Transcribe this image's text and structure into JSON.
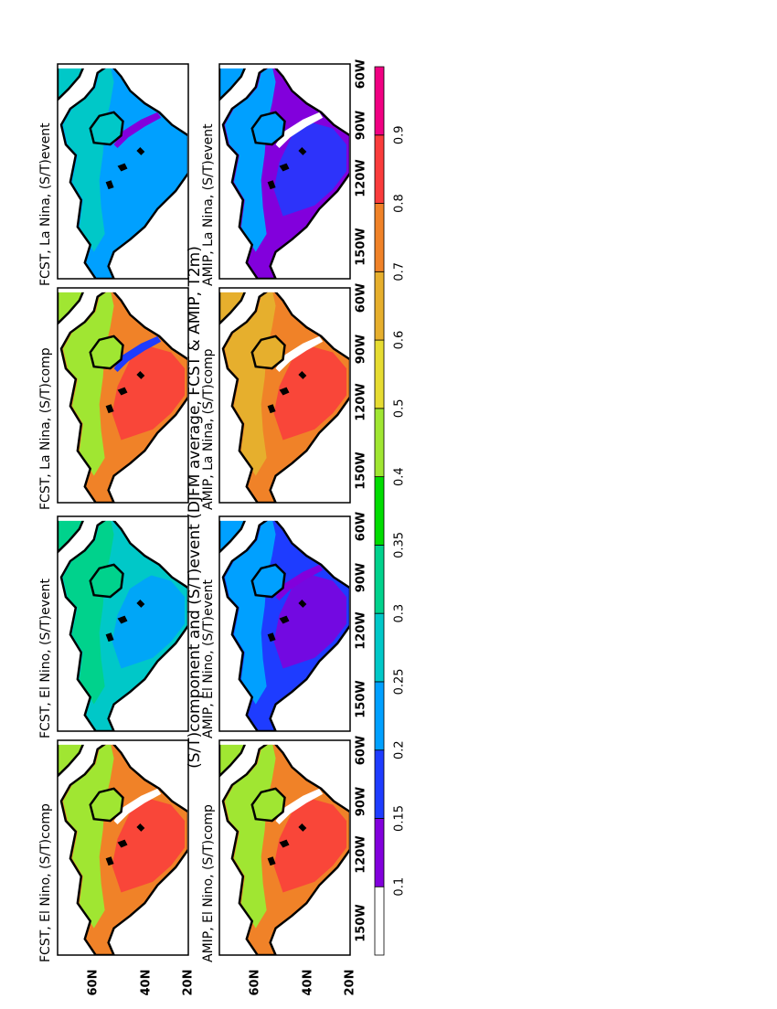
{
  "title": "(S/T)component and (S/T)event (DJFM average, FCST & AMIP, T2m)",
  "panels": [
    {
      "title": "FCST, El Nino, (S/T)comp"
    },
    {
      "title": "FCST, El Nino, (S/T)event"
    },
    {
      "title": "FCST, La Nina, (S/T)comp"
    },
    {
      "title": "FCST, La Nina, (S/T)event"
    },
    {
      "title": "AMIP, El Nino, (S/T)comp"
    },
    {
      "title": "AMIP, El Nino, (S/T)event"
    },
    {
      "title": "AMIP, La Nina, (S/T)comp"
    },
    {
      "title": "AMIP, La Nina, (S/T)event"
    }
  ],
  "lat_labels": [
    "60N",
    "40N",
    "20N"
  ],
  "lon_labels": [
    "150W",
    "120W",
    "90W",
    "60W"
  ],
  "colorbar": {
    "levels": [
      0.1,
      0.15,
      0.2,
      0.25,
      0.3,
      0.35,
      0.4,
      0.5,
      0.6,
      0.7,
      0.8,
      0.9
    ],
    "colors": [
      "#ffffff",
      "#8200dc",
      "#1e3cff",
      "#00a0ff",
      "#00c8c8",
      "#00d28c",
      "#00dc00",
      "#a0e632",
      "#e6dc32",
      "#e6af2d",
      "#f08228",
      "#fa3c3c",
      "#f00082"
    ]
  }
}
